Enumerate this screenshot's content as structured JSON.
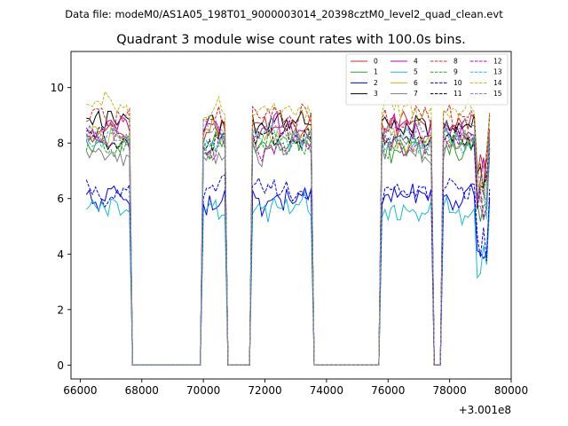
{
  "header": {
    "file_label": "Data file: modeM0/AS1A05_198T01_9000003014_20398cztM0_level2_quad_clean.evt"
  },
  "chart_data": {
    "type": "line",
    "title": "Quadrant 3 module wise count rates with 100.0s bins.",
    "xlabel": "",
    "ylabel": "",
    "x_offset_label": "+3.001e8",
    "xlim": [
      65700,
      80000
    ],
    "ylim": [
      -0.5,
      11.3
    ],
    "x_ticks": [
      66000,
      68000,
      70000,
      72000,
      74000,
      76000,
      78000,
      80000
    ],
    "x_tick_labels": [
      "66000",
      "68000",
      "70000",
      "72000",
      "74000",
      "76000",
      "78000",
      "80000"
    ],
    "y_ticks": [
      0,
      2,
      4,
      6,
      8,
      10
    ],
    "y_tick_labels": [
      "0",
      "2",
      "4",
      "6",
      "8",
      "10"
    ],
    "grid": false,
    "legend_position": "top-right",
    "legend_columns": 4,
    "time_segments": [
      {
        "state": "on",
        "start": 66200,
        "end": 67600
      },
      {
        "state": "off",
        "start": 67700,
        "end": 69900
      },
      {
        "state": "on",
        "start": 70000,
        "end": 70700
      },
      {
        "state": "off",
        "start": 70800,
        "end": 71500
      },
      {
        "state": "on",
        "start": 71600,
        "end": 73500
      },
      {
        "state": "off",
        "start": 73600,
        "end": 75700
      },
      {
        "state": "on",
        "start": 75800,
        "end": 77400
      },
      {
        "state": "off",
        "start": 77500,
        "end": 77700
      },
      {
        "state": "on",
        "start": 77800,
        "end": 79300
      }
    ],
    "series": [
      {
        "name": "0",
        "color": "#d62728",
        "dash": "solid",
        "rate": 8.6
      },
      {
        "name": "1",
        "color": "#2ca02c",
        "dash": "solid",
        "rate": 7.9
      },
      {
        "name": "2",
        "color": "#0000ff",
        "dash": "solid",
        "rate": 6.0
      },
      {
        "name": "3",
        "color": "#000000",
        "dash": "solid",
        "rate": 8.8
      },
      {
        "name": "4",
        "color": "#bf00bf",
        "dash": "solid",
        "rate": 8.5
      },
      {
        "name": "5",
        "color": "#17becf",
        "dash": "solid",
        "rate": 5.6
      },
      {
        "name": "6",
        "color": "#bcbd22",
        "dash": "solid",
        "rate": 8.2
      },
      {
        "name": "7",
        "color": "#7f7f7f",
        "dash": "solid",
        "rate": 7.8
      },
      {
        "name": "8",
        "color": "#d62728",
        "dash": "dashed",
        "rate": 8.9
      },
      {
        "name": "9",
        "color": "#2ca02c",
        "dash": "dashed",
        "rate": 7.9
      },
      {
        "name": "10",
        "color": "#0000ff",
        "dash": "dashed",
        "rate": 6.3
      },
      {
        "name": "11",
        "color": "#000000",
        "dash": "dashed",
        "rate": 8.1
      },
      {
        "name": "12",
        "color": "#bf00bf",
        "dash": "dashed",
        "rate": 8.0
      },
      {
        "name": "13",
        "color": "#17becf",
        "dash": "dashed",
        "rate": 8.1
      },
      {
        "name": "14",
        "color": "#bcbd22",
        "dash": "dashed",
        "rate": 9.2
      },
      {
        "name": "15",
        "color": "#7f7fbf",
        "dash": "dashed",
        "rate": 8.4
      }
    ]
  }
}
